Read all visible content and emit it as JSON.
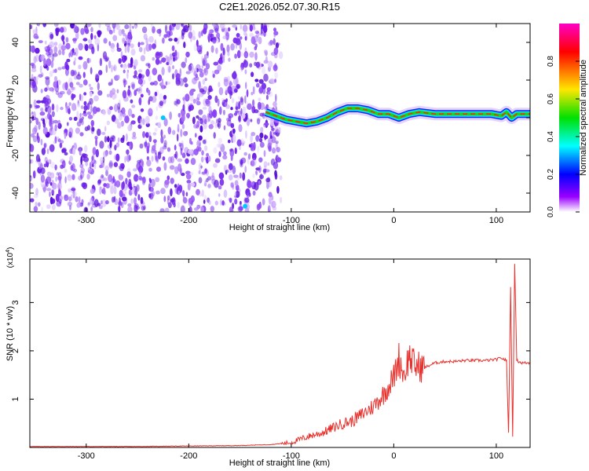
{
  "title": "C2E1.2026.052.07.30.R15",
  "colors": {
    "snr_line": "#e8302c",
    "spectro_speckle": "#7a2df0",
    "background": "#ffffff",
    "colorbar_stops": [
      "#ff00c8",
      "#ff0000",
      "#ffe600",
      "#00e000",
      "#00ffff",
      "#0000ff",
      "#9a00ff",
      "#ffffff"
    ]
  },
  "chart_data": [
    {
      "type": "heatmap",
      "title": "C2E1.2026.052.07.30.R15",
      "xlabel": "Height of straight line (km)",
      "ylabel": "Frequency (Hz)",
      "xlim": [
        -355,
        133
      ],
      "ylim": [
        -50,
        50
      ],
      "x_ticks": [
        -300,
        -200,
        -100,
        0,
        100
      ],
      "y_ticks": [
        -40,
        -20,
        0,
        20,
        40
      ],
      "colorbar": {
        "label": "Normalized spectral amplitude",
        "range": [
          0.0,
          1.0
        ],
        "ticks": [
          "0.0",
          "0.2",
          "0.4",
          "0.6",
          "0.8"
        ]
      },
      "noise_region_x": [
        -355,
        -110
      ],
      "signal_ridge": {
        "x": [
          -125,
          -115,
          -105,
          -95,
          -85,
          -75,
          -65,
          -55,
          -45,
          -35,
          -25,
          -15,
          -5,
          5,
          15,
          25,
          40,
          60,
          80,
          95,
          105,
          110,
          115,
          120,
          133
        ],
        "y": [
          3,
          1,
          -1,
          -2,
          -3,
          -2,
          0,
          3,
          5,
          5,
          4,
          2,
          2,
          0,
          2,
          3,
          2,
          2,
          2,
          2,
          1,
          3,
          0,
          2,
          2
        ]
      }
    },
    {
      "type": "line",
      "xlabel": "Height of straight line (km)",
      "ylabel": "SNR (10 * v/v)",
      "y_multiplier": "(x10",
      "y_multiplier_exp": "4",
      "y_multiplier_close": ")",
      "xlim": [
        -355,
        133
      ],
      "ylim": [
        0,
        3.9
      ],
      "x_ticks": [
        -300,
        -200,
        -100,
        0,
        100
      ],
      "y_ticks": [
        1,
        2,
        3
      ],
      "series": [
        {
          "x": [
            -355,
            -300,
            -250,
            -200,
            -150,
            -120,
            -100,
            -90,
            -80,
            -70,
            -60,
            -50,
            -40,
            -30,
            -20,
            -10,
            0,
            5,
            10,
            15,
            20,
            30,
            40,
            50,
            60,
            70,
            80,
            90,
            100,
            105,
            110,
            112,
            114,
            116,
            118,
            120,
            125,
            133
          ],
          "values": [
            0.02,
            0.02,
            0.02,
            0.03,
            0.04,
            0.06,
            0.1,
            0.18,
            0.25,
            0.3,
            0.4,
            0.5,
            0.55,
            0.7,
            0.85,
            1.1,
            1.45,
            1.85,
            1.5,
            1.9,
            1.7,
            1.65,
            1.75,
            1.78,
            1.78,
            1.8,
            1.8,
            1.8,
            1.82,
            1.85,
            1.8,
            0.3,
            3.3,
            0.25,
            3.8,
            1.8,
            1.75,
            1.75
          ]
        }
      ]
    }
  ]
}
